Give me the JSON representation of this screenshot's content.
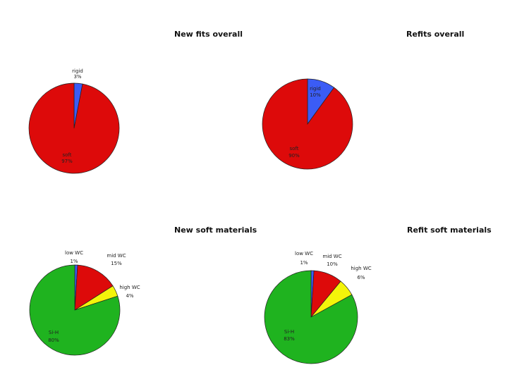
{
  "chart_data": [
    {
      "type": "pie",
      "title": "New fits overall",
      "categories": [
        "rigid",
        "soft"
      ],
      "values": [
        3,
        97
      ],
      "value_labels": [
        "3%",
        "97%"
      ],
      "colors": [
        "#3b5cf5",
        "#dd0a0a"
      ]
    },
    {
      "type": "pie",
      "title": "Refits overall",
      "categories": [
        "rigid",
        "soft"
      ],
      "values": [
        10,
        90
      ],
      "value_labels": [
        "10%",
        "90%"
      ],
      "colors": [
        "#3b5cf5",
        "#dd0a0a"
      ]
    },
    {
      "type": "pie",
      "title": "New soft materials",
      "categories": [
        "low WC",
        "mid WC",
        "high WC",
        "Si-H"
      ],
      "values": [
        1,
        15,
        4,
        80
      ],
      "value_labels": [
        "1%",
        "15%",
        "4%",
        "80%"
      ],
      "colors": [
        "#3b5cf5",
        "#dd0a0a",
        "#f4f40a",
        "#1fb31f"
      ]
    },
    {
      "type": "pie",
      "title": "Refit soft materials",
      "categories": [
        "low WC",
        "mid WC",
        "high WC",
        "Si-H"
      ],
      "values": [
        1,
        10,
        6,
        83
      ],
      "value_labels": [
        "1%",
        "10%",
        "6%",
        "83%"
      ],
      "colors": [
        "#3b5cf5",
        "#dd0a0a",
        "#f4f40a",
        "#1fb31f"
      ]
    }
  ]
}
